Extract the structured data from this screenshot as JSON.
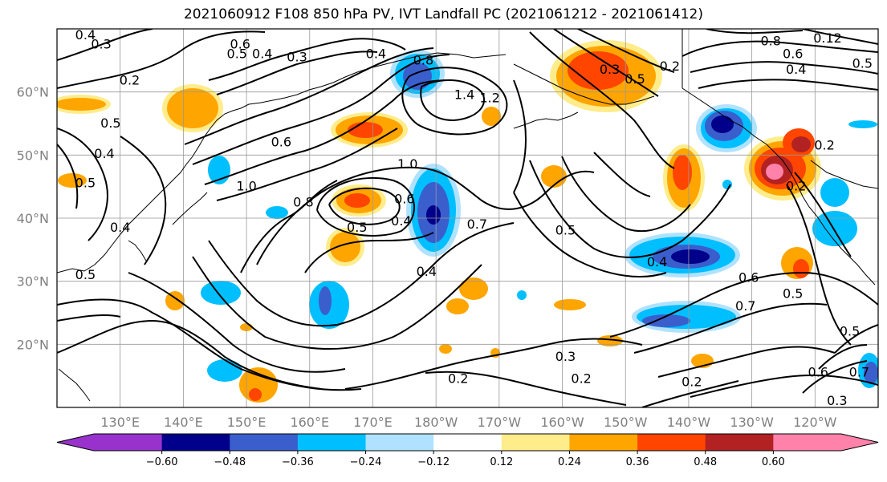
{
  "title": "2021060912 F108 850 hPa PV, IVT Landfall PC (2021061212 - 2021061412)",
  "map": {
    "lon_range": [
      120,
      250
    ],
    "lat_range": [
      10,
      70
    ],
    "lat_ticks": [
      "20°N",
      "30°N",
      "40°N",
      "50°N",
      "60°N"
    ],
    "lon_ticks": [
      "130°E",
      "140°E",
      "150°E",
      "160°E",
      "170°E",
      "180°W",
      "170°W",
      "160°W",
      "150°W",
      "140°W",
      "130°W",
      "120°W"
    ],
    "gridlines": true,
    "gridline_color": "#999999",
    "contour_color": "#000000"
  },
  "colorbar": {
    "ticks": [
      "−0.60",
      "−0.48",
      "−0.36",
      "−0.24",
      "−0.12",
      "0.12",
      "0.24",
      "0.36",
      "0.48",
      "0.60"
    ],
    "colors": [
      "#9932cc",
      "#00008b",
      "#3a5fcd",
      "#00bfff",
      "#b0e2ff",
      "#ffffff",
      "#ffec8b",
      "#ffa500",
      "#ff4500",
      "#b22222",
      "#ff82ab"
    ],
    "extend": "both"
  },
  "contour_labels": [
    {
      "text": "0.4",
      "lon": 124.5,
      "lat": 69.0
    },
    {
      "text": "0.3",
      "lon": 127.0,
      "lat": 67.5
    },
    {
      "text": "0.2",
      "lon": 131.5,
      "lat": 61.8
    },
    {
      "text": "0.5",
      "lon": 128.5,
      "lat": 55.0
    },
    {
      "text": "0.4",
      "lon": 127.5,
      "lat": 50.2
    },
    {
      "text": "0.5",
      "lon": 124.5,
      "lat": 45.5
    },
    {
      "text": "0.4",
      "lon": 130.0,
      "lat": 38.5
    },
    {
      "text": "0.5",
      "lon": 124.5,
      "lat": 31.0
    },
    {
      "text": "0.6",
      "lon": 149.0,
      "lat": 67.5
    },
    {
      "text": "0.5",
      "lon": 148.5,
      "lat": 66.0
    },
    {
      "text": "0.4",
      "lon": 152.5,
      "lat": 66.0
    },
    {
      "text": "0.3",
      "lon": 158.0,
      "lat": 65.5
    },
    {
      "text": "0.4",
      "lon": 170.5,
      "lat": 66.0
    },
    {
      "text": "0.8",
      "lon": 178.0,
      "lat": 65.0
    },
    {
      "text": "1.4",
      "lon": 184.5,
      "lat": 59.5
    },
    {
      "text": "1.2",
      "lon": 188.5,
      "lat": 59.0
    },
    {
      "text": "0.6",
      "lon": 155.5,
      "lat": 52.0
    },
    {
      "text": "1.0",
      "lon": 150.0,
      "lat": 45.0
    },
    {
      "text": "0.8",
      "lon": 159.0,
      "lat": 42.5
    },
    {
      "text": "1.0",
      "lon": 175.5,
      "lat": 48.5
    },
    {
      "text": "0.6",
      "lon": 175.0,
      "lat": 43.0
    },
    {
      "text": "0.5",
      "lon": 167.5,
      "lat": 38.5
    },
    {
      "text": "0.4",
      "lon": 174.5,
      "lat": 39.5
    },
    {
      "text": "0.7",
      "lon": 186.5,
      "lat": 39.0
    },
    {
      "text": "0.4",
      "lon": 178.5,
      "lat": 31.5
    },
    {
      "text": "0.5",
      "lon": 200.5,
      "lat": 38.0
    },
    {
      "text": "0.3",
      "lon": 207.5,
      "lat": 63.5
    },
    {
      "text": "0.5",
      "lon": 211.5,
      "lat": 62.0
    },
    {
      "text": "0.2",
      "lon": 217.0,
      "lat": 64.0
    },
    {
      "text": "0.8",
      "lon": 233.0,
      "lat": 68.0
    },
    {
      "text": "0.6",
      "lon": 236.5,
      "lat": 66.0
    },
    {
      "text": "0.12",
      "lon": 242.0,
      "lat": 68.5
    },
    {
      "text": "0.4",
      "lon": 237.0,
      "lat": 63.5
    },
    {
      "text": "0.5",
      "lon": 247.5,
      "lat": 64.5
    },
    {
      "text": "0.2",
      "lon": 241.5,
      "lat": 51.5
    },
    {
      "text": "0.2",
      "lon": 237.0,
      "lat": 45.0
    },
    {
      "text": "0.4",
      "lon": 215.0,
      "lat": 33.0
    },
    {
      "text": "0.6",
      "lon": 229.5,
      "lat": 30.5
    },
    {
      "text": "0.5",
      "lon": 236.5,
      "lat": 28.0
    },
    {
      "text": "0.7",
      "lon": 229.0,
      "lat": 26.0
    },
    {
      "text": "0.5",
      "lon": 245.5,
      "lat": 22.0
    },
    {
      "text": "0.3",
      "lon": 200.5,
      "lat": 18.0
    },
    {
      "text": "0.2",
      "lon": 183.5,
      "lat": 14.5
    },
    {
      "text": "0.2",
      "lon": 203.0,
      "lat": 14.5
    },
    {
      "text": "0.2",
      "lon": 220.5,
      "lat": 14.0
    },
    {
      "text": "0.6",
      "lon": 240.5,
      "lat": 15.5
    },
    {
      "text": "0.7",
      "lon": 247.0,
      "lat": 15.5
    },
    {
      "text": "0.3",
      "lon": 243.5,
      "lat": 11.0
    }
  ]
}
